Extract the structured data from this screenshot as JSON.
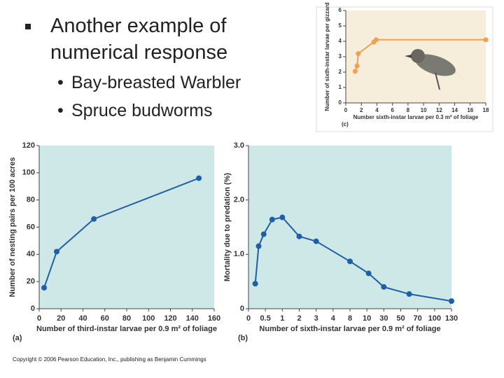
{
  "slide": {
    "title_lines": [
      "Another example of",
      "numerical response"
    ],
    "bullets": [
      "Bay-breasted Warbler",
      "Spruce budworms"
    ],
    "copyright": "Copyright © 2006 Pearson Education, Inc., publishing as Benjamin Cummings"
  },
  "chart_data": [
    {
      "type": "scatter",
      "panel_label": "(c)",
      "x_label": "Number sixth-instar larvae per 0.3 m² of foliage",
      "y_label": "Number of sixth-instar larvae per gizzard",
      "x": [
        1.2,
        1.45,
        1.6,
        3.6,
        3.9,
        18
      ],
      "values": [
        2.05,
        2.4,
        3.2,
        3.95,
        4.1,
        4.1
      ],
      "color": "#f0a050",
      "xlim": [
        0,
        18
      ],
      "xticks": [
        0,
        2,
        4,
        6,
        8,
        10,
        12,
        14,
        16,
        18
      ],
      "ylim": [
        0,
        6
      ],
      "yticks": [
        0,
        1,
        2,
        3,
        4,
        5,
        6
      ]
    },
    {
      "type": "scatter",
      "panel_label": "(a)",
      "x_label": "Number of third-instar larvae per 0.9 m² of foliage",
      "y_label": "Number of nesting pairs per 100 acres",
      "x": [
        4.5,
        16,
        50,
        146
      ],
      "values": [
        15.4,
        42,
        66,
        96
      ],
      "color": "#1f5fa8",
      "xlim": [
        0,
        160
      ],
      "xticks": [
        0,
        20,
        40,
        60,
        80,
        100,
        120,
        140,
        160
      ],
      "ylim": [
        0,
        120
      ],
      "yticks": [
        0,
        20,
        40,
        60,
        80,
        100,
        120
      ]
    },
    {
      "type": "scatter",
      "panel_label": "(b)",
      "x_label": "Number of sixth-instar larvae per 0.9 m² of foliage",
      "y_label": "Mortality due to predation (%)",
      "x": [
        0.2,
        0.3,
        0.45,
        0.7,
        1,
        2,
        3,
        8,
        12,
        30,
        60,
        130
      ],
      "values": [
        0.46,
        1.15,
        1.37,
        1.64,
        1.68,
        1.33,
        1.24,
        0.87,
        0.65,
        0.4,
        0.27,
        0.14
      ],
      "color": "#1f5fa8",
      "xscale": "tick-spaced",
      "xlim": [
        0,
        130
      ],
      "xticks": [
        0,
        0.5,
        1,
        2,
        3,
        4,
        8,
        10,
        30,
        50,
        70,
        100,
        130
      ],
      "ylim": [
        0,
        3
      ],
      "yticks": [
        0,
        {
          "value": 1,
          "label": "1.0"
        },
        {
          "value": 2,
          "label": "2.0"
        },
        {
          "value": 3,
          "label": "3.0"
        }
      ]
    }
  ]
}
